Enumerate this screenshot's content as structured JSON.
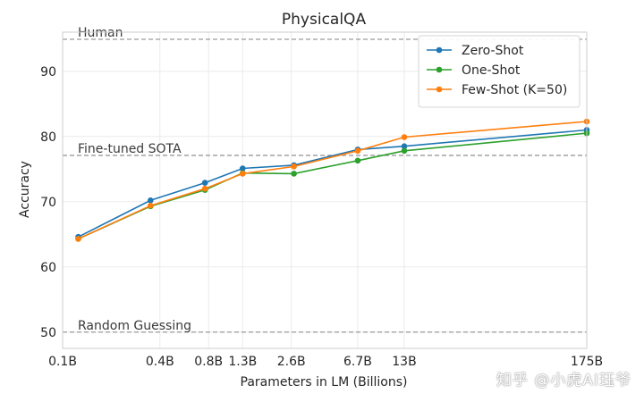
{
  "chart_data": {
    "type": "line",
    "title": "PhysicalQA",
    "xlabel": "Parameters in LM (Billions)",
    "ylabel": "Accuracy",
    "xscale": "log",
    "x": [
      0.125,
      0.35,
      0.76,
      1.3,
      2.7,
      6.7,
      13,
      175
    ],
    "xticks": [
      0.1,
      0.4,
      0.8,
      1.3,
      2.6,
      6.7,
      13,
      175
    ],
    "xtick_labels": [
      "0.1B",
      "0.4B",
      "0.8B",
      "1.3B",
      "2.6B",
      "6.7B",
      "13B",
      "175B"
    ],
    "xlim": [
      0.1,
      175
    ],
    "ylim": [
      47.5,
      96
    ],
    "yticks": [
      50,
      60,
      70,
      80,
      90
    ],
    "grid": true,
    "legend_position": "top-right",
    "series": [
      {
        "name": "Zero-Shot",
        "color": "#1f77b4",
        "values": [
          64.6,
          70.2,
          72.9,
          75.1,
          75.6,
          78.0,
          78.5,
          81.0
        ]
      },
      {
        "name": "One-Shot",
        "color": "#2ca02c",
        "values": [
          64.3,
          69.3,
          71.8,
          74.4,
          74.3,
          76.3,
          77.8,
          80.5
        ]
      },
      {
        "name": "Few-Shot (K=50)",
        "color": "#ff7f0e",
        "values": [
          64.3,
          69.4,
          72.0,
          74.3,
          75.4,
          77.8,
          79.9,
          82.3
        ]
      }
    ],
    "reference_lines": [
      {
        "label": "Human",
        "value": 94.9
      },
      {
        "label": "Fine-tuned SOTA",
        "value": 77.1
      },
      {
        "label": "Random Guessing",
        "value": 50.0
      }
    ]
  },
  "watermark": "知乎 @小虎AI珏爷"
}
